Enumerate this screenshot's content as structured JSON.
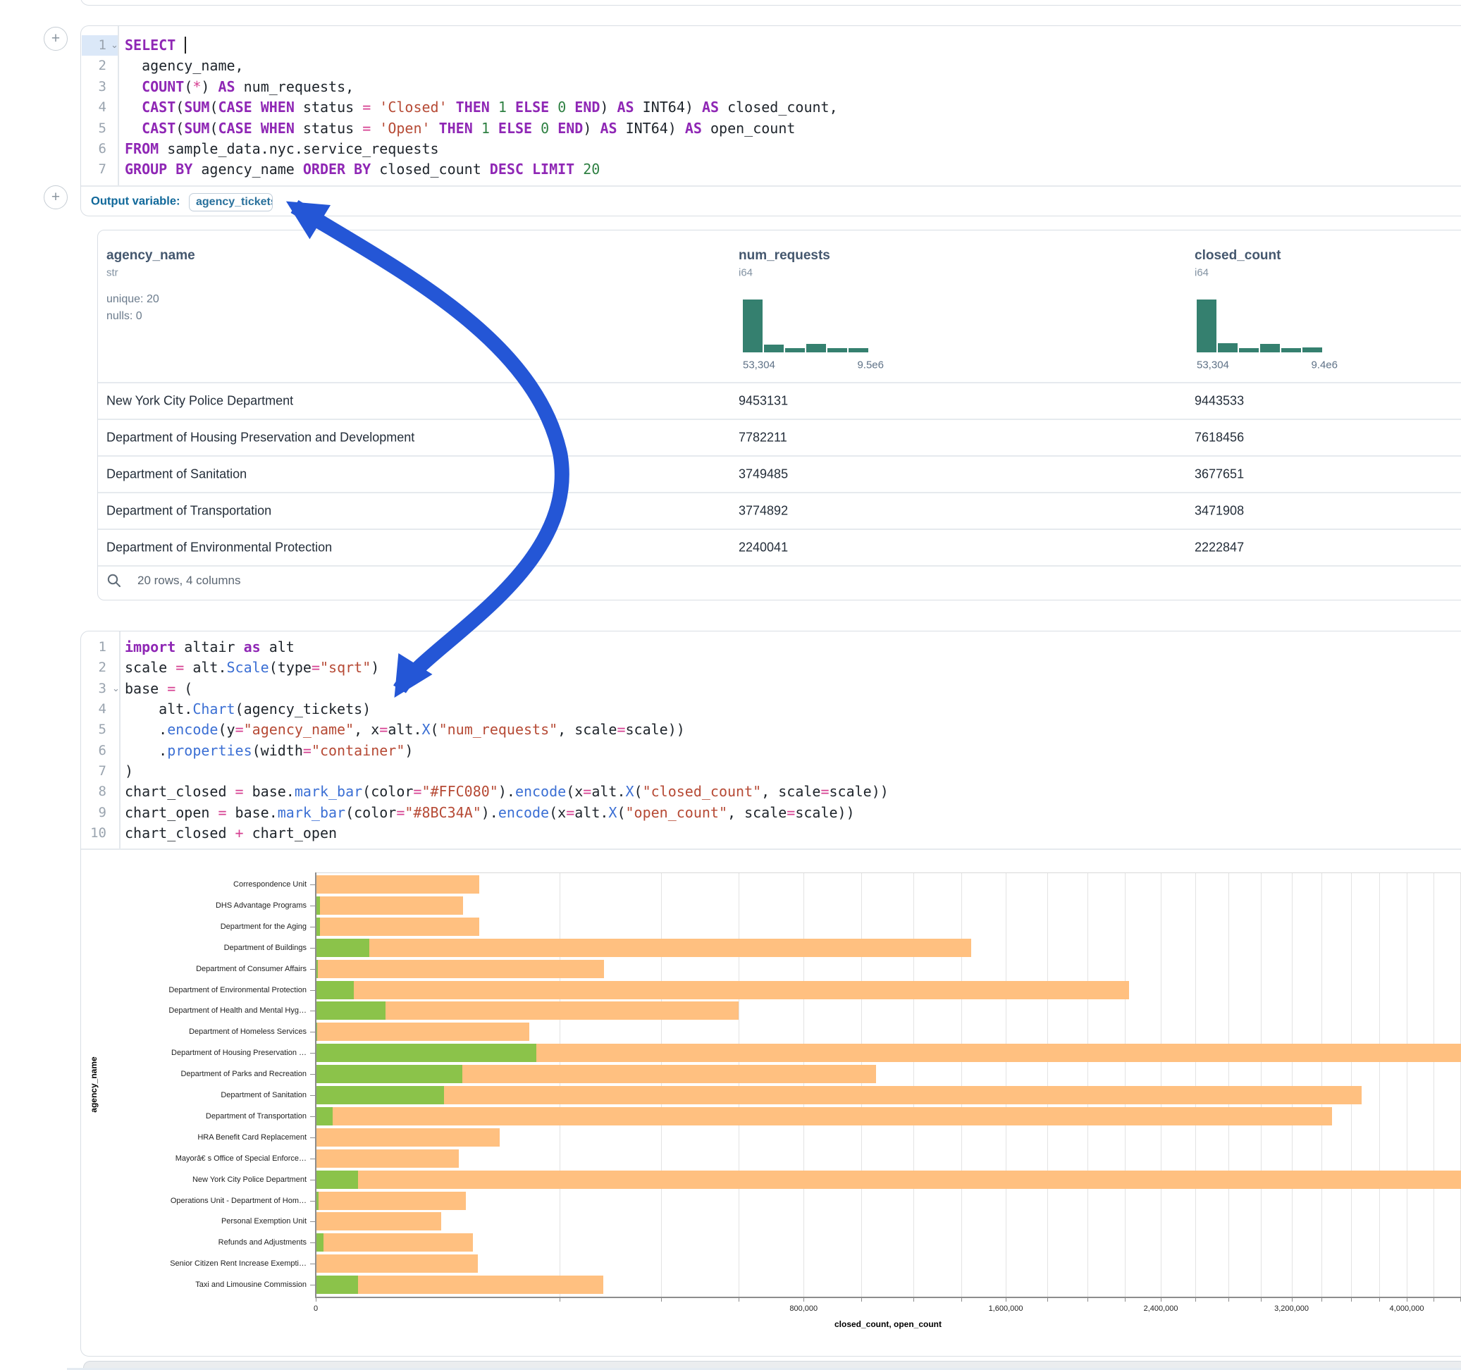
{
  "ui": {
    "add_cell_button_glyph": "+",
    "collapse_chevron_glyph": "⌄"
  },
  "sql_cell": {
    "line_numbers": [
      "1",
      "2",
      "3",
      "4",
      "5",
      "6",
      "7"
    ],
    "lines": [
      [
        [
          "kw",
          "SELECT"
        ],
        [
          "pl",
          " "
        ]
      ],
      [
        [
          "pl",
          "  agency_name,"
        ]
      ],
      [
        [
          "pl",
          "  "
        ],
        [
          "kw",
          "COUNT"
        ],
        [
          "pl",
          "("
        ],
        [
          "op",
          "*"
        ],
        [
          "pl",
          ") "
        ],
        [
          "kw",
          "AS"
        ],
        [
          "pl",
          " num_requests,"
        ]
      ],
      [
        [
          "pl",
          "  "
        ],
        [
          "kw",
          "CAST"
        ],
        [
          "pl",
          "("
        ],
        [
          "kw",
          "SUM"
        ],
        [
          "pl",
          "("
        ],
        [
          "kw",
          "CASE"
        ],
        [
          "pl",
          " "
        ],
        [
          "kw",
          "WHEN"
        ],
        [
          "pl",
          " status "
        ],
        [
          "op",
          "="
        ],
        [
          "pl",
          " "
        ],
        [
          "str",
          "'Closed'"
        ],
        [
          "pl",
          " "
        ],
        [
          "kw",
          "THEN"
        ],
        [
          "pl",
          " "
        ],
        [
          "num",
          "1"
        ],
        [
          "pl",
          " "
        ],
        [
          "kw",
          "ELSE"
        ],
        [
          "pl",
          " "
        ],
        [
          "num",
          "0"
        ],
        [
          "pl",
          " "
        ],
        [
          "kw",
          "END"
        ],
        [
          "pl",
          ") "
        ],
        [
          "kw",
          "AS"
        ],
        [
          "pl",
          " INT64) "
        ],
        [
          "kw",
          "AS"
        ],
        [
          "pl",
          " closed_count,"
        ]
      ],
      [
        [
          "pl",
          "  "
        ],
        [
          "kw",
          "CAST"
        ],
        [
          "pl",
          "("
        ],
        [
          "kw",
          "SUM"
        ],
        [
          "pl",
          "("
        ],
        [
          "kw",
          "CASE"
        ],
        [
          "pl",
          " "
        ],
        [
          "kw",
          "WHEN"
        ],
        [
          "pl",
          " status "
        ],
        [
          "op",
          "="
        ],
        [
          "pl",
          " "
        ],
        [
          "str",
          "'Open'"
        ],
        [
          "pl",
          " "
        ],
        [
          "kw",
          "THEN"
        ],
        [
          "pl",
          " "
        ],
        [
          "num",
          "1"
        ],
        [
          "pl",
          " "
        ],
        [
          "kw",
          "ELSE"
        ],
        [
          "pl",
          " "
        ],
        [
          "num",
          "0"
        ],
        [
          "pl",
          " "
        ],
        [
          "kw",
          "END"
        ],
        [
          "pl",
          ") "
        ],
        [
          "kw",
          "AS"
        ],
        [
          "pl",
          " INT64) "
        ],
        [
          "kw",
          "AS"
        ],
        [
          "pl",
          " open_count"
        ]
      ],
      [
        [
          "kw",
          "FROM"
        ],
        [
          "pl",
          " sample_data.nyc.service_requests"
        ]
      ],
      [
        [
          "kw",
          "GROUP BY"
        ],
        [
          "pl",
          " agency_name "
        ],
        [
          "kw",
          "ORDER BY"
        ],
        [
          "pl",
          " closed_count "
        ],
        [
          "kw",
          "DESC"
        ],
        [
          "pl",
          " "
        ],
        [
          "kw",
          "LIMIT"
        ],
        [
          "pl",
          " "
        ],
        [
          "num",
          "20"
        ]
      ]
    ]
  },
  "output_bar": {
    "label": "Output variable:",
    "variable": "agency_tickets"
  },
  "table": {
    "columns": [
      {
        "name": "agency_name",
        "type": "str",
        "stats": [
          "unique: 20",
          "nulls: 0"
        ]
      },
      {
        "name": "num_requests",
        "type": "i64",
        "hist": {
          "bars": [
            1.0,
            0.15,
            0.08,
            0.16,
            0.08,
            0.08
          ],
          "min_label": "53,304",
          "max_label": "9.5e6"
        }
      },
      {
        "name": "closed_count",
        "type": "i64",
        "hist": {
          "bars": [
            1.0,
            0.17,
            0.08,
            0.16,
            0.08,
            0.09
          ],
          "min_label": "53,304",
          "max_label": "9.4e6"
        }
      }
    ],
    "rows": [
      {
        "agency_name": "New York City Police Department",
        "num_requests": "9453131",
        "closed_count": "9443533"
      },
      {
        "agency_name": "Department of Housing Preservation and Development",
        "num_requests": "7782211",
        "closed_count": "7618456"
      },
      {
        "agency_name": "Department of Sanitation",
        "num_requests": "3749485",
        "closed_count": "3677651"
      },
      {
        "agency_name": "Department of Transportation",
        "num_requests": "3774892",
        "closed_count": "3471908"
      },
      {
        "agency_name": "Department of Environmental Protection",
        "num_requests": "2240041",
        "closed_count": "2222847"
      }
    ],
    "footer": {
      "text": "20 rows, 4 columns"
    }
  },
  "python_cell": {
    "line_numbers": [
      "1",
      "2",
      "3",
      "4",
      "5",
      "6",
      "7",
      "8",
      "9",
      "10"
    ],
    "lines": [
      [
        [
          "kw",
          "import"
        ],
        [
          "pl",
          " altair "
        ],
        [
          "kw",
          "as"
        ],
        [
          "pl",
          " alt"
        ]
      ],
      [
        [
          "pl",
          "scale "
        ],
        [
          "op",
          "="
        ],
        [
          "pl",
          " alt."
        ],
        [
          "fn",
          "Scale"
        ],
        [
          "pl",
          "(type"
        ],
        [
          "op",
          "="
        ],
        [
          "str",
          "\"sqrt\""
        ],
        [
          "pl",
          ")"
        ]
      ],
      [
        [
          "pl",
          "base "
        ],
        [
          "op",
          "="
        ],
        [
          "pl",
          " ("
        ]
      ],
      [
        [
          "pl",
          "    alt."
        ],
        [
          "fn",
          "Chart"
        ],
        [
          "pl",
          "(agency_tickets)"
        ]
      ],
      [
        [
          "pl",
          "    ."
        ],
        [
          "fn",
          "encode"
        ],
        [
          "pl",
          "(y"
        ],
        [
          "op",
          "="
        ],
        [
          "str",
          "\"agency_name\""
        ],
        [
          "pl",
          ", x"
        ],
        [
          "op",
          "="
        ],
        [
          "pl",
          "alt."
        ],
        [
          "fn",
          "X"
        ],
        [
          "pl",
          "("
        ],
        [
          "str",
          "\"num_requests\""
        ],
        [
          "pl",
          ", scale"
        ],
        [
          "op",
          "="
        ],
        [
          "pl",
          "scale))"
        ]
      ],
      [
        [
          "pl",
          "    ."
        ],
        [
          "fn",
          "properties"
        ],
        [
          "pl",
          "(width"
        ],
        [
          "op",
          "="
        ],
        [
          "str",
          "\"container\""
        ],
        [
          "pl",
          ")"
        ]
      ],
      [
        [
          "pl",
          ")"
        ]
      ],
      [
        [
          "pl",
          "chart_closed "
        ],
        [
          "op",
          "="
        ],
        [
          "pl",
          " base."
        ],
        [
          "fn",
          "mark_bar"
        ],
        [
          "pl",
          "(color"
        ],
        [
          "op",
          "="
        ],
        [
          "str",
          "\"#FFC080\""
        ],
        [
          "pl",
          ")."
        ],
        [
          "fn",
          "encode"
        ],
        [
          "pl",
          "(x"
        ],
        [
          "op",
          "="
        ],
        [
          "pl",
          "alt."
        ],
        [
          "fn",
          "X"
        ],
        [
          "pl",
          "("
        ],
        [
          "str",
          "\"closed_count\""
        ],
        [
          "pl",
          ", scale"
        ],
        [
          "op",
          "="
        ],
        [
          "pl",
          "scale))"
        ]
      ],
      [
        [
          "pl",
          "chart_open "
        ],
        [
          "op",
          "="
        ],
        [
          "pl",
          " base."
        ],
        [
          "fn",
          "mark_bar"
        ],
        [
          "pl",
          "(color"
        ],
        [
          "op",
          "="
        ],
        [
          "str",
          "\"#8BC34A\""
        ],
        [
          "pl",
          ")."
        ],
        [
          "fn",
          "encode"
        ],
        [
          "pl",
          "(x"
        ],
        [
          "op",
          "="
        ],
        [
          "pl",
          "alt."
        ],
        [
          "fn",
          "X"
        ],
        [
          "pl",
          "("
        ],
        [
          "str",
          "\"open_count\""
        ],
        [
          "pl",
          ", scale"
        ],
        [
          "op",
          "="
        ],
        [
          "pl",
          "scale))"
        ]
      ],
      [
        [
          "pl",
          "chart_closed "
        ],
        [
          "op",
          "+"
        ],
        [
          "pl",
          " chart_open"
        ]
      ]
    ]
  },
  "chart_data": {
    "type": "bar",
    "orientation": "horizontal",
    "xlabel": "closed_count, open_count",
    "ylabel": "agency_name",
    "x_scale": "sqrt",
    "x_tick_values": [
      0,
      800000,
      1600000,
      2400000,
      3200000,
      4000000
    ],
    "x_tick_labels": [
      "0",
      "800,000",
      "1,600,000",
      "2,400,000",
      "3,200,000",
      "4,000,000"
    ],
    "x_minor_tick_step": 200000,
    "x_visible_max": 4400000,
    "grid": true,
    "categories": [
      "Correspondence Unit",
      "DHS Advantage Programs",
      "Department for the Aging",
      "Department of Buildings",
      "Department of Consumer Affairs",
      "Department of Environmental Protection",
      "Department of Health and Mental Hyg…",
      "Department of Homeless Services",
      "Department of Housing Preservation …",
      "Department of Parks and Recreation",
      "Department of Sanitation",
      "Department of Transportation",
      "HRA Benefit Card Replacement",
      "Mayorâ€ s Office of Special Enforce…",
      "New York City Police Department",
      "Operations Unit - Department of Hom…",
      "Personal Exemption Unit",
      "Refunds and Adjustments",
      "Senior Citizen Rent Increase Exempti…",
      "Taxi and Limousine Commission"
    ],
    "series": [
      {
        "name": "closed_count",
        "color": "#FFC080",
        "values": [
          90000,
          73000,
          90000,
          1444000,
          279000,
          2222847,
          601000,
          153000,
          7618456,
          1056000,
          3677651,
          3471908,
          114000,
          69000,
          9443533,
          76000,
          53000,
          83000,
          88000,
          278000
        ]
      },
      {
        "name": "open_count",
        "color": "#8BC34A",
        "values": [
          0,
          60,
          60,
          9600,
          15,
          4900,
          16400,
          5,
          164000,
          72000,
          55000,
          1000,
          0,
          0,
          6000,
          30,
          0,
          200,
          0,
          6000
        ]
      }
    ]
  },
  "annotation": {
    "arrow_color": "#2456d6"
  },
  "colors": {
    "histogram_fill": "#35806f",
    "card_border": "#d9dee4",
    "output_label": "#10689a",
    "chip_text": "#2a719c",
    "bar_closed": "#FFC080",
    "bar_open": "#8BC34A"
  }
}
